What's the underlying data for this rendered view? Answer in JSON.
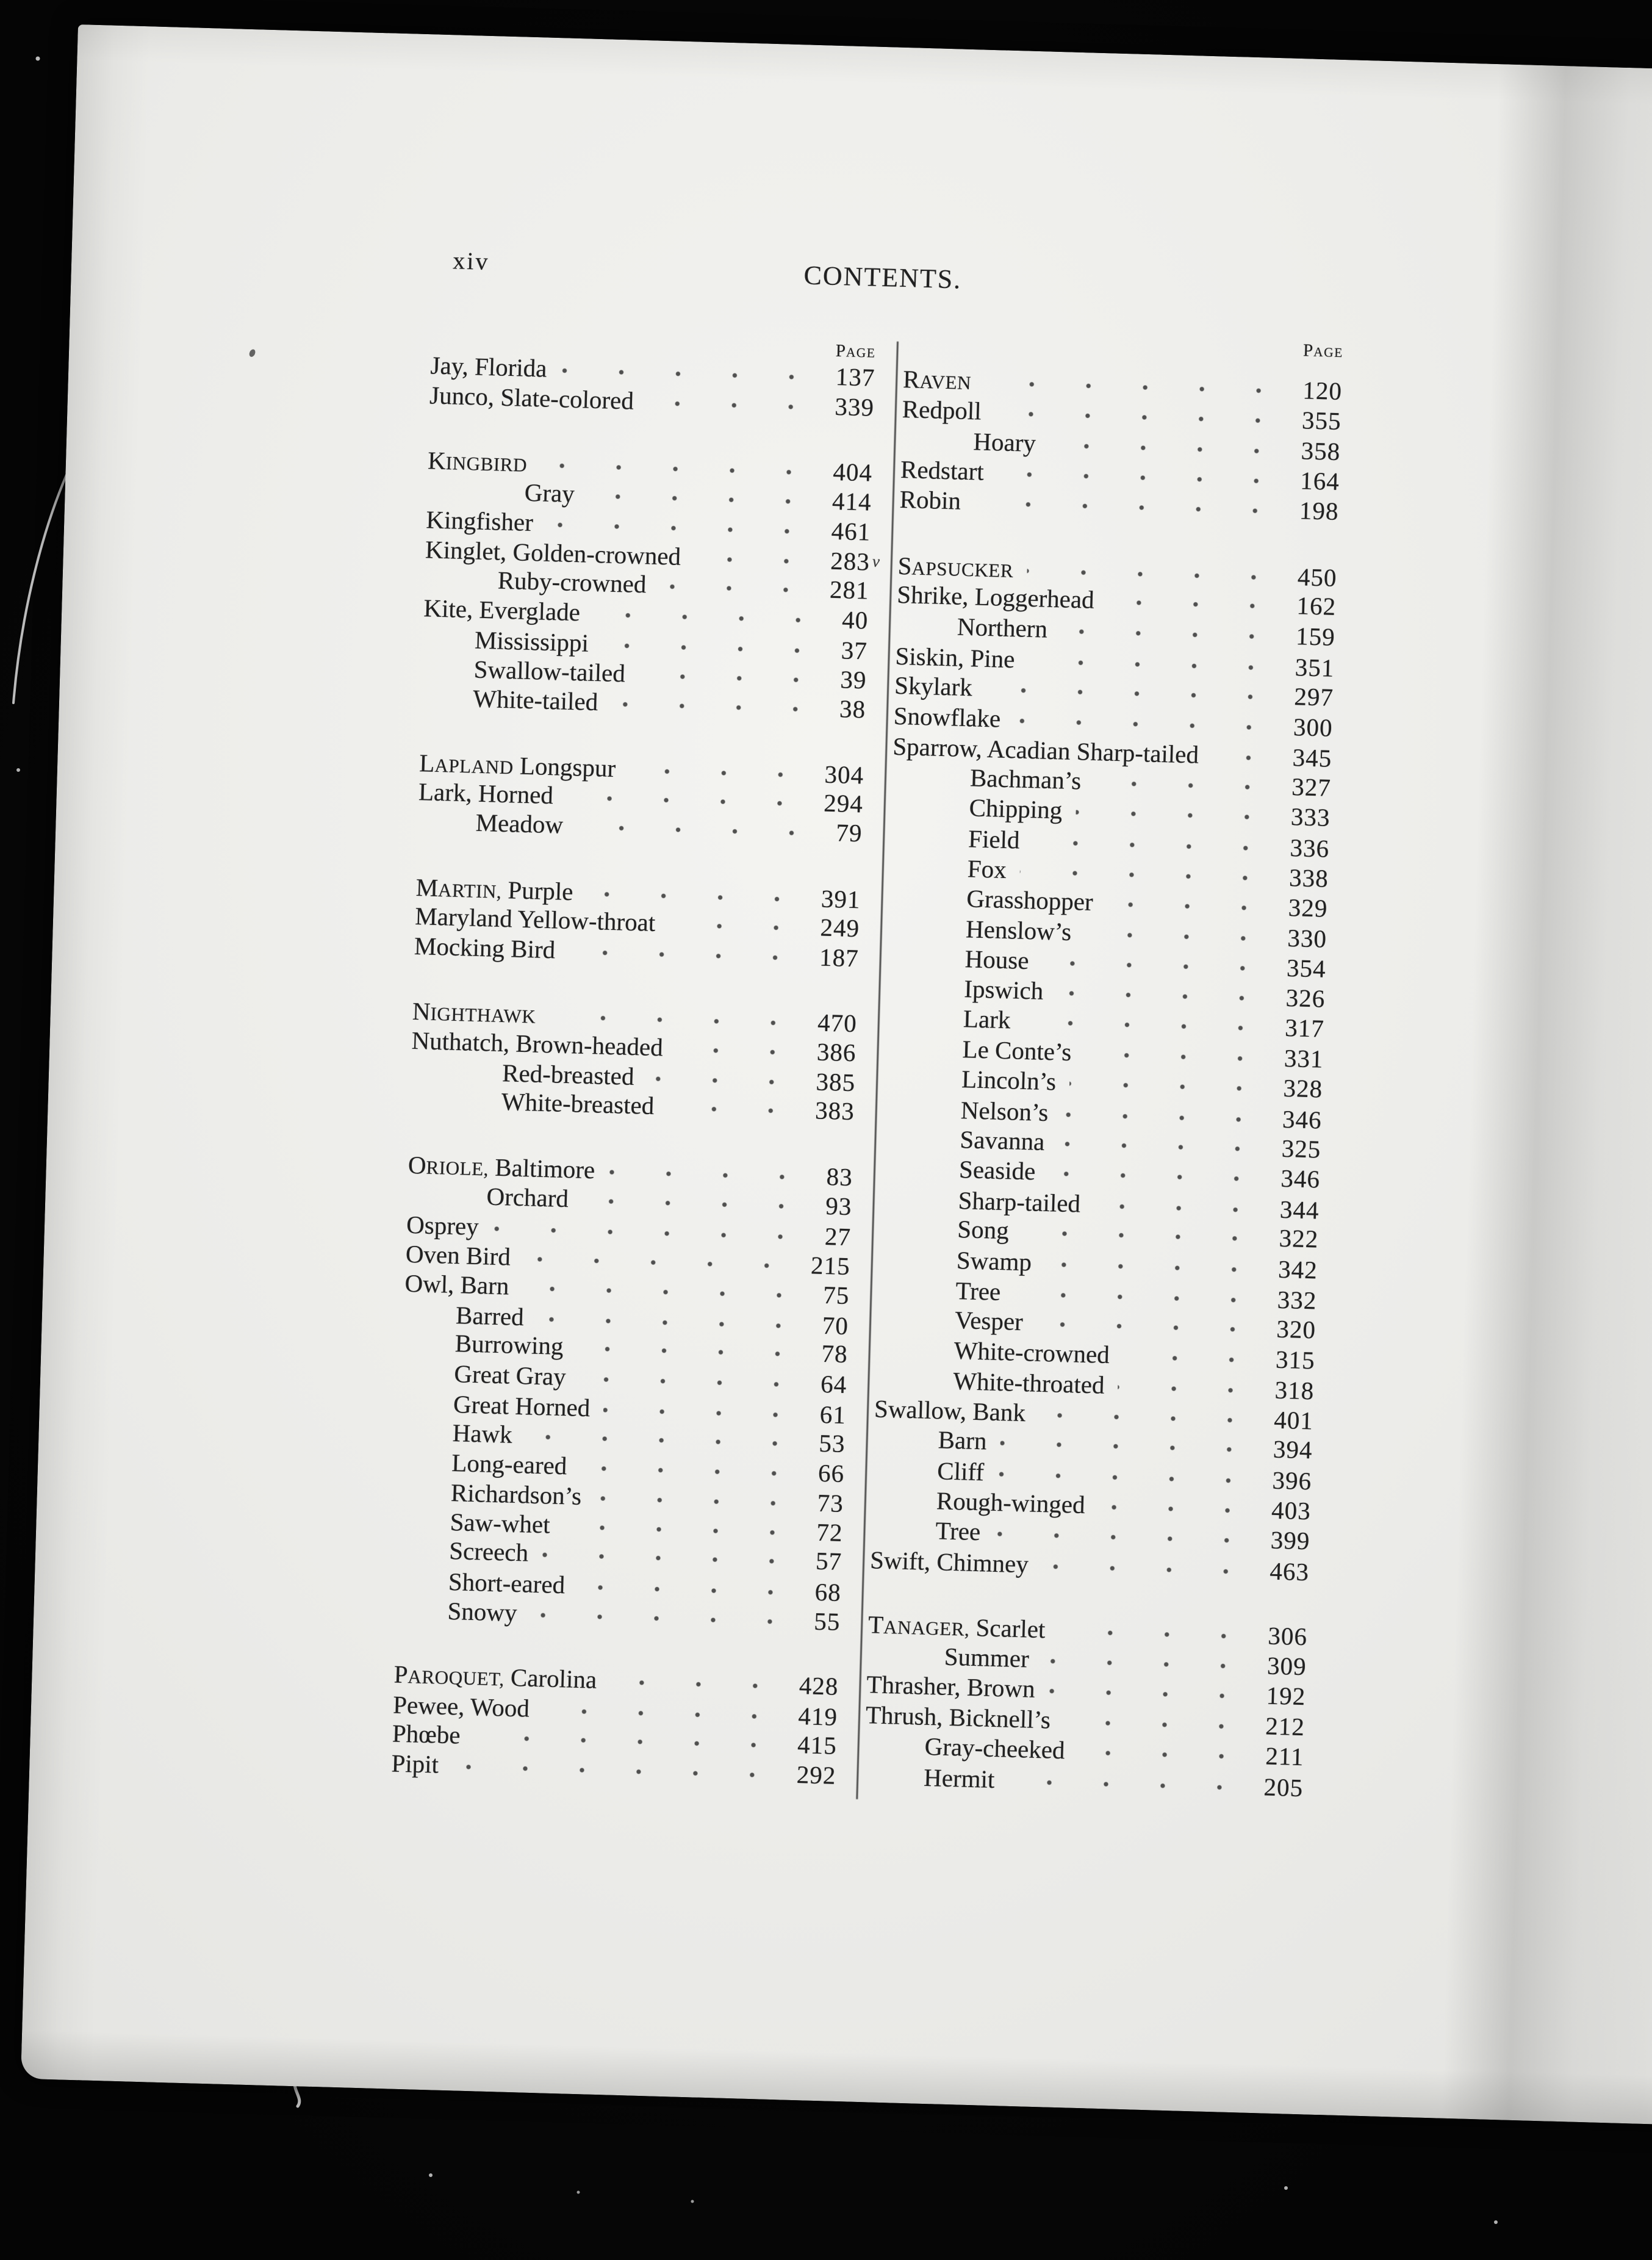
{
  "header": {
    "folio": "xiv",
    "title": "CONTENTS."
  },
  "page_column_header": "Page",
  "marginalia": {
    "check_mark": "v"
  },
  "colors": {
    "paper": "#ecece9",
    "ink": "#212121",
    "background": "#070707"
  },
  "columns": [
    {
      "side": "left",
      "entries": [
        {
          "sc": "",
          "text": "Jay, Florida",
          "page": "137",
          "indent": 0
        },
        {
          "sc": "",
          "text": "Junco, Slate-colored",
          "page": "339",
          "indent": 0
        },
        {
          "sc": "Kingbird",
          "text": "",
          "page": "404",
          "indent": 0,
          "gap": true
        },
        {
          "sc": "",
          "text": "Gray",
          "page": "414",
          "indent": 160
        },
        {
          "sc": "",
          "text": "Kingfisher",
          "page": "461",
          "indent": 0
        },
        {
          "sc": "",
          "text": "Kinglet, Golden-crowned",
          "page": "283",
          "indent": 0
        },
        {
          "sc": "",
          "text": "Ruby-crowned",
          "page": "281",
          "indent": 120
        },
        {
          "sc": "",
          "text": "Kite, Everglade",
          "page": "40",
          "indent": 0
        },
        {
          "sc": "",
          "text": "Mississippi",
          "page": "37",
          "indent": 85
        },
        {
          "sc": "",
          "text": "Swallow-tailed",
          "page": "39",
          "indent": 85
        },
        {
          "sc": "",
          "text": "White-tailed",
          "page": "38",
          "indent": 85
        },
        {
          "sc": "Lapland",
          "text": "Longspur",
          "page": "304",
          "indent": 0,
          "gap": true
        },
        {
          "sc": "",
          "text": "Lark, Horned",
          "page": "294",
          "indent": 0
        },
        {
          "sc": "",
          "text": "Meadow",
          "page": "79",
          "indent": 95
        },
        {
          "sc": "Martin,",
          "text": "Purple",
          "page": "391",
          "indent": 0,
          "gap": true
        },
        {
          "sc": "",
          "text": "Maryland Yellow-throat",
          "page": "249",
          "indent": 0
        },
        {
          "sc": "",
          "text": "Mocking Bird",
          "page": "187",
          "indent": 0
        },
        {
          "sc": "Nighthawk",
          "text": "",
          "page": "470",
          "indent": 0,
          "gap": true
        },
        {
          "sc": "",
          "text": "Nuthatch, Brown-headed",
          "page": "386",
          "indent": 0
        },
        {
          "sc": "",
          "text": "Red-breasted",
          "page": "385",
          "indent": 150
        },
        {
          "sc": "",
          "text": "White-breasted",
          "page": "383",
          "indent": 150
        },
        {
          "sc": "Oriole,",
          "text": "Baltimore",
          "page": "83",
          "indent": 0,
          "gap": true
        },
        {
          "sc": "",
          "text": "Orchard",
          "page": "93",
          "indent": 130
        },
        {
          "sc": "",
          "text": "Osprey",
          "page": "27",
          "indent": 0
        },
        {
          "sc": "",
          "text": "Oven Bird",
          "page": "215",
          "indent": 0
        },
        {
          "sc": "",
          "text": "Owl, Barn",
          "page": "75",
          "indent": 0
        },
        {
          "sc": "",
          "text": "Barred",
          "page": "70",
          "indent": 85
        },
        {
          "sc": "",
          "text": "Burrowing",
          "page": "78",
          "indent": 85
        },
        {
          "sc": "",
          "text": "Great Gray",
          "page": "64",
          "indent": 85
        },
        {
          "sc": "",
          "text": "Great Horned",
          "page": "61",
          "indent": 85
        },
        {
          "sc": "",
          "text": "Hawk",
          "page": "53",
          "indent": 85
        },
        {
          "sc": "",
          "text": "Long-eared",
          "page": "66",
          "indent": 85
        },
        {
          "sc": "",
          "text": "Richardson’s",
          "page": "73",
          "indent": 85
        },
        {
          "sc": "",
          "text": "Saw-whet",
          "page": "72",
          "indent": 85
        },
        {
          "sc": "",
          "text": "Screech",
          "page": "57",
          "indent": 85
        },
        {
          "sc": "",
          "text": "Short-eared",
          "page": "68",
          "indent": 85
        },
        {
          "sc": "",
          "text": "Snowy",
          "page": "55",
          "indent": 85
        },
        {
          "sc": "Paroquet,",
          "text": "Carolina",
          "page": "428",
          "indent": 0,
          "gap": true
        },
        {
          "sc": "",
          "text": "Pewee, Wood",
          "page": "419",
          "indent": 0
        },
        {
          "sc": "",
          "text": "Phœbe",
          "page": "415",
          "indent": 0
        },
        {
          "sc": "",
          "text": "Pipit",
          "page": "292",
          "indent": 0
        }
      ]
    },
    {
      "side": "right",
      "entries": [
        {
          "sc": "Raven",
          "text": "",
          "page": "120",
          "indent": 0
        },
        {
          "sc": "",
          "text": "Redpoll",
          "page": "355",
          "indent": 0
        },
        {
          "sc": "",
          "text": "Hoary",
          "page": "358",
          "indent": 118
        },
        {
          "sc": "",
          "text": "Redstart",
          "page": "164",
          "indent": 0
        },
        {
          "sc": "",
          "text": "Robin",
          "page": "198",
          "indent": 0
        },
        {
          "sc": "Sapsucker",
          "text": "",
          "page": "450",
          "indent": 0,
          "gap": true
        },
        {
          "sc": "",
          "text": "Shrike, Loggerhead",
          "page": "162",
          "indent": 0
        },
        {
          "sc": "",
          "text": "Northern",
          "page": "159",
          "indent": 100
        },
        {
          "sc": "",
          "text": "Siskin, Pine",
          "page": "351",
          "indent": 0
        },
        {
          "sc": "",
          "text": "Skylark",
          "page": "297",
          "indent": 0
        },
        {
          "sc": "",
          "text": "Snowflake",
          "page": "300",
          "indent": 0
        },
        {
          "sc": "",
          "text": "Sparrow, Acadian Sharp-tailed",
          "page": "345",
          "indent": 0
        },
        {
          "sc": "",
          "text": "Bachman’s",
          "page": "327",
          "indent": 128
        },
        {
          "sc": "",
          "text": "Chipping",
          "page": "333",
          "indent": 128
        },
        {
          "sc": "",
          "text": "Field",
          "page": "336",
          "indent": 128
        },
        {
          "sc": "",
          "text": "Fox",
          "page": "338",
          "indent": 128
        },
        {
          "sc": "",
          "text": "Grasshopper",
          "page": "329",
          "indent": 128
        },
        {
          "sc": "",
          "text": "Henslow’s",
          "page": "330",
          "indent": 128
        },
        {
          "sc": "",
          "text": "House",
          "page": "354",
          "indent": 128
        },
        {
          "sc": "",
          "text": "Ipswich",
          "page": "326",
          "indent": 128
        },
        {
          "sc": "",
          "text": "Lark",
          "page": "317",
          "indent": 128
        },
        {
          "sc": "",
          "text": "Le Conte’s",
          "page": "331",
          "indent": 128
        },
        {
          "sc": "",
          "text": "Lincoln’s",
          "page": "328",
          "indent": 128
        },
        {
          "sc": "",
          "text": "Nelson’s",
          "page": "346",
          "indent": 128
        },
        {
          "sc": "",
          "text": "Savanna",
          "page": "325",
          "indent": 128
        },
        {
          "sc": "",
          "text": "Seaside",
          "page": "346",
          "indent": 128
        },
        {
          "sc": "",
          "text": "Sharp-tailed",
          "page": "344",
          "indent": 128
        },
        {
          "sc": "",
          "text": "Song",
          "page": "322",
          "indent": 128
        },
        {
          "sc": "",
          "text": "Swamp",
          "page": "342",
          "indent": 128
        },
        {
          "sc": "",
          "text": "Tree",
          "page": "332",
          "indent": 128
        },
        {
          "sc": "",
          "text": "Vesper",
          "page": "320",
          "indent": 128
        },
        {
          "sc": "",
          "text": "White-crowned",
          "page": "315",
          "indent": 128
        },
        {
          "sc": "",
          "text": "White-throated",
          "page": "318",
          "indent": 128
        },
        {
          "sc": "",
          "text": "Swallow, Bank",
          "page": "401",
          "indent": 0
        },
        {
          "sc": "",
          "text": "Barn",
          "page": "394",
          "indent": 106
        },
        {
          "sc": "",
          "text": "Cliff",
          "page": "396",
          "indent": 106
        },
        {
          "sc": "",
          "text": "Rough-winged",
          "page": "403",
          "indent": 106
        },
        {
          "sc": "",
          "text": "Tree",
          "page": "399",
          "indent": 106
        },
        {
          "sc": "",
          "text": "Swift, Chimney",
          "page": "463",
          "indent": 0
        },
        {
          "sc": "Tanager,",
          "text": "Scarlet",
          "page": "306",
          "indent": 0,
          "gap": true
        },
        {
          "sc": "",
          "text": "Summer",
          "page": "309",
          "indent": 126
        },
        {
          "sc": "",
          "text": "Thrasher, Brown",
          "page": "192",
          "indent": 0
        },
        {
          "sc": "",
          "text": "Thrush, Bicknell’s",
          "page": "212",
          "indent": 0
        },
        {
          "sc": "",
          "text": "Gray-cheeked",
          "page": "211",
          "indent": 98
        },
        {
          "sc": "",
          "text": "Hermit",
          "page": "205",
          "indent": 98
        }
      ]
    }
  ]
}
